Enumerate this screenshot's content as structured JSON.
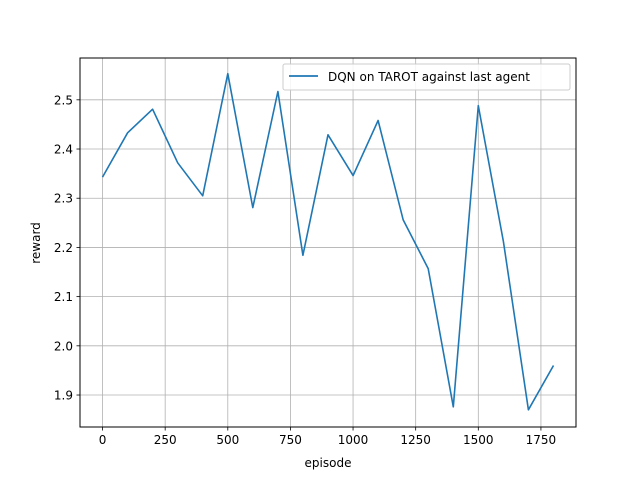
{
  "chart_data": {
    "type": "line",
    "title": "",
    "xlabel": "episode",
    "ylabel": "reward",
    "xlim": [
      -90,
      1890
    ],
    "ylim": [
      1.835,
      2.585
    ],
    "xticks": [
      0,
      250,
      500,
      750,
      1000,
      1250,
      1500,
      1750
    ],
    "xtick_labels": [
      "0",
      "250",
      "500",
      "750",
      "1000",
      "1250",
      "1500",
      "1750"
    ],
    "yticks": [
      1.9,
      2.0,
      2.1,
      2.2,
      2.3,
      2.4,
      2.5
    ],
    "ytick_labels": [
      "1.9",
      "2.0",
      "2.1",
      "2.2",
      "2.3",
      "2.4",
      "2.5"
    ],
    "grid": true,
    "legend_position": "top-right",
    "series": [
      {
        "name": "DQN on TAROT against last agent",
        "color": "#1f77b4",
        "x": [
          0,
          100,
          200,
          300,
          400,
          500,
          600,
          700,
          800,
          900,
          1000,
          1100,
          1200,
          1300,
          1400,
          1500,
          1600,
          1700,
          1800
        ],
        "y": [
          2.343,
          2.433,
          2.481,
          2.372,
          2.305,
          2.553,
          2.281,
          2.517,
          2.184,
          2.429,
          2.346,
          2.458,
          2.256,
          2.157,
          1.876,
          2.488,
          2.212,
          1.87,
          1.96
        ]
      }
    ]
  }
}
